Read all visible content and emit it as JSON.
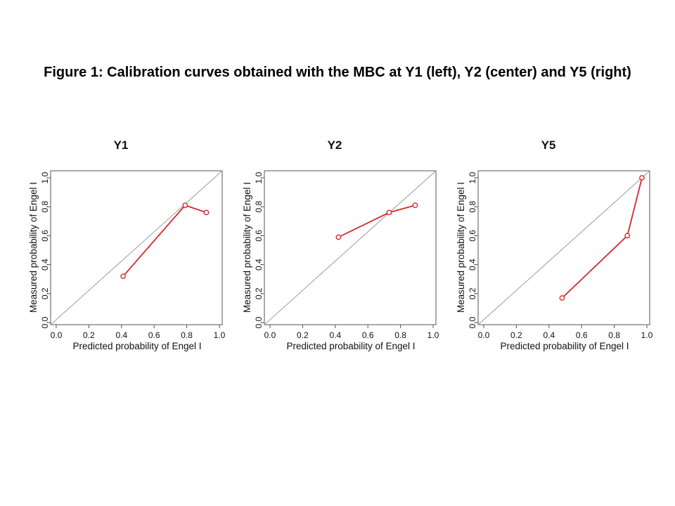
{
  "figure": {
    "title": "Figure 1: Calibration curves obtained with the MBC at Y1 (left), Y2 (center) and Y5 (right)"
  },
  "style": {
    "curve_color": "#d22b2e",
    "identity_color": "#9a9a9a",
    "frame_color": "#555555",
    "text_color": "#111111",
    "marker": "open-circle",
    "background": "#ffffff"
  },
  "chart_data": [
    {
      "type": "line",
      "title": "Y1",
      "xlabel": "Predicted probability of Engel I",
      "ylabel": "Measured probability of Engel I",
      "xlim": [
        0.0,
        1.0
      ],
      "ylim": [
        0.0,
        1.0
      ],
      "xticks": [
        "0.0",
        "0.2",
        "0.4",
        "0.6",
        "0.8",
        "1.0"
      ],
      "yticks": [
        "0.0",
        "0.2",
        "0.4",
        "0.6",
        "0.8",
        "1.0"
      ],
      "reference_line": "identity y = x",
      "points": [
        [
          0.41,
          0.32
        ],
        [
          0.79,
          0.81
        ],
        [
          0.92,
          0.76
        ]
      ]
    },
    {
      "type": "line",
      "title": "Y2",
      "xlabel": "Predicted probability of Engel I",
      "ylabel": "Measured probability of Engel I",
      "xlim": [
        0.0,
        1.0
      ],
      "ylim": [
        0.0,
        1.0
      ],
      "xticks": [
        "0.0",
        "0.2",
        "0.4",
        "0.6",
        "0.8",
        "1.0"
      ],
      "yticks": [
        "0.0",
        "0.2",
        "0.4",
        "0.6",
        "0.8",
        "1.0"
      ],
      "reference_line": "identity y = x",
      "points": [
        [
          0.42,
          0.59
        ],
        [
          0.73,
          0.76
        ],
        [
          0.89,
          0.81
        ]
      ]
    },
    {
      "type": "line",
      "title": "Y5",
      "xlabel": "Predicted probability of Engel I",
      "ylabel": "Measured probability of Engel I",
      "xlim": [
        0.0,
        1.0
      ],
      "ylim": [
        0.0,
        1.0
      ],
      "xticks": [
        "0.0",
        "0.2",
        "0.4",
        "0.6",
        "0.8",
        "1.0"
      ],
      "yticks": [
        "0.0",
        "0.2",
        "0.4",
        "0.6",
        "0.8",
        "1.0"
      ],
      "reference_line": "identity y = x",
      "points": [
        [
          0.48,
          0.17
        ],
        [
          0.88,
          0.6
        ],
        [
          0.97,
          1.0
        ]
      ]
    }
  ]
}
